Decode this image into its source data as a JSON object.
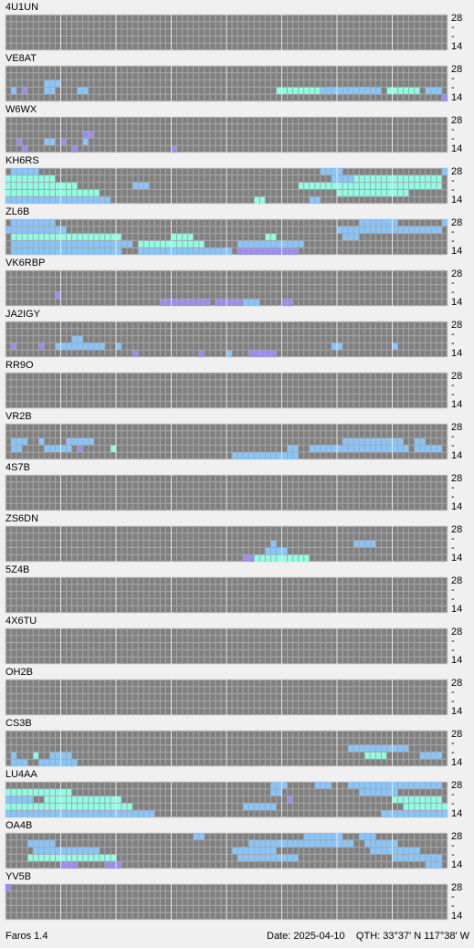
{
  "levels": {
    "palette": [
      "#9a8cf0",
      "#86c6ff",
      "#8cffe6"
    ]
  },
  "axis_labels": [
    "28",
    "-",
    "-",
    "14"
  ],
  "stations": [
    {
      "name": "4U1UN",
      "runs": []
    },
    {
      "name": "VE8AT",
      "runs": [
        [
          2,
          7,
          9,
          2
        ],
        [
          3,
          1,
          1,
          2
        ],
        [
          3,
          3,
          3,
          1
        ],
        [
          3,
          7,
          8,
          2
        ],
        [
          3,
          13,
          14,
          2
        ],
        [
          3,
          49,
          56,
          3
        ],
        [
          3,
          57,
          67,
          2
        ],
        [
          3,
          69,
          74,
          3
        ],
        [
          3,
          76,
          78,
          2
        ],
        [
          4,
          79,
          79,
          1
        ]
      ]
    },
    {
      "name": "W6WX",
      "runs": [
        [
          2,
          14,
          15,
          1
        ],
        [
          3,
          2,
          2,
          1
        ],
        [
          3,
          7,
          8,
          2
        ],
        [
          3,
          10,
          10,
          1
        ],
        [
          3,
          14,
          14,
          2
        ],
        [
          4,
          3,
          3,
          1
        ],
        [
          4,
          12,
          12,
          1
        ],
        [
          4,
          30,
          30,
          1
        ]
      ]
    },
    {
      "name": "KH6RS",
      "runs": [
        [
          0,
          1,
          5,
          2
        ],
        [
          0,
          57,
          60,
          2
        ],
        [
          0,
          79,
          79,
          2
        ],
        [
          1,
          0,
          8,
          3
        ],
        [
          1,
          59,
          62,
          2
        ],
        [
          1,
          63,
          78,
          3
        ],
        [
          2,
          0,
          12,
          3
        ],
        [
          2,
          23,
          25,
          2
        ],
        [
          2,
          53,
          78,
          3
        ],
        [
          3,
          0,
          16,
          3
        ],
        [
          3,
          60,
          72,
          3
        ],
        [
          4,
          0,
          18,
          2
        ],
        [
          4,
          45,
          46,
          3
        ],
        [
          4,
          55,
          56,
          2
        ]
      ]
    },
    {
      "name": "ZL6B",
      "runs": [
        [
          0,
          1,
          8,
          2
        ],
        [
          0,
          64,
          70,
          2
        ],
        [
          0,
          79,
          79,
          2
        ],
        [
          1,
          0,
          10,
          2
        ],
        [
          1,
          60,
          78,
          2
        ],
        [
          2,
          1,
          20,
          3
        ],
        [
          2,
          30,
          33,
          3
        ],
        [
          2,
          47,
          48,
          3
        ],
        [
          2,
          61,
          63,
          2
        ],
        [
          3,
          1,
          22,
          2
        ],
        [
          3,
          24,
          35,
          3
        ],
        [
          3,
          42,
          53,
          2
        ],
        [
          4,
          1,
          20,
          2
        ],
        [
          4,
          24,
          40,
          2
        ],
        [
          4,
          42,
          52,
          1
        ]
      ]
    },
    {
      "name": "VK6RBP",
      "runs": [
        [
          3,
          9,
          9,
          1
        ],
        [
          4,
          28,
          36,
          1
        ],
        [
          4,
          38,
          42,
          1
        ],
        [
          4,
          43,
          45,
          2
        ],
        [
          4,
          50,
          51,
          1
        ]
      ]
    },
    {
      "name": "JA2IGY",
      "runs": [
        [
          2,
          12,
          13,
          2
        ],
        [
          3,
          1,
          1,
          1
        ],
        [
          3,
          6,
          6,
          1
        ],
        [
          3,
          9,
          17,
          2
        ],
        [
          3,
          20,
          20,
          2
        ],
        [
          3,
          59,
          60,
          2
        ],
        [
          3,
          70,
          70,
          2
        ],
        [
          4,
          23,
          23,
          1
        ],
        [
          4,
          35,
          35,
          1
        ],
        [
          4,
          40,
          40,
          2
        ],
        [
          4,
          44,
          48,
          1
        ]
      ]
    },
    {
      "name": "RR9O",
      "runs": []
    },
    {
      "name": "VR2B",
      "runs": [
        [
          2,
          1,
          3,
          2
        ],
        [
          2,
          6,
          6,
          2
        ],
        [
          2,
          11,
          15,
          2
        ],
        [
          2,
          61,
          71,
          2
        ],
        [
          2,
          74,
          75,
          2
        ],
        [
          3,
          1,
          2,
          2
        ],
        [
          3,
          7,
          11,
          2
        ],
        [
          3,
          13,
          13,
          1
        ],
        [
          3,
          19,
          19,
          3
        ],
        [
          3,
          51,
          52,
          2
        ],
        [
          3,
          55,
          72,
          2
        ],
        [
          3,
          74,
          78,
          2
        ],
        [
          4,
          41,
          52,
          2
        ]
      ]
    },
    {
      "name": "4S7B",
      "runs": []
    },
    {
      "name": "ZS6DN",
      "runs": [
        [
          2,
          48,
          48,
          2
        ],
        [
          2,
          63,
          66,
          2
        ],
        [
          3,
          47,
          50,
          2
        ],
        [
          4,
          43,
          44,
          1
        ],
        [
          4,
          45,
          54,
          3
        ]
      ]
    },
    {
      "name": "5Z4B",
      "runs": []
    },
    {
      "name": "4X6TU",
      "runs": []
    },
    {
      "name": "OH2B",
      "runs": []
    },
    {
      "name": "CS3B",
      "runs": [
        [
          2,
          62,
          72,
          2
        ],
        [
          3,
          1,
          1,
          2
        ],
        [
          3,
          5,
          5,
          3
        ],
        [
          3,
          8,
          11,
          2
        ],
        [
          3,
          65,
          68,
          3
        ],
        [
          3,
          75,
          78,
          2
        ],
        [
          4,
          1,
          3,
          2
        ],
        [
          4,
          6,
          12,
          2
        ]
      ]
    },
    {
      "name": "LU4AA",
      "runs": [
        [
          0,
          48,
          50,
          2
        ],
        [
          0,
          56,
          58,
          2
        ],
        [
          0,
          62,
          78,
          2
        ],
        [
          1,
          0,
          11,
          3
        ],
        [
          1,
          48,
          49,
          2
        ],
        [
          1,
          64,
          70,
          2
        ],
        [
          2,
          0,
          4,
          2
        ],
        [
          2,
          7,
          20,
          3
        ],
        [
          2,
          51,
          51,
          1
        ],
        [
          2,
          70,
          78,
          3
        ],
        [
          3,
          0,
          22,
          3
        ],
        [
          3,
          43,
          48,
          2
        ],
        [
          3,
          72,
          79,
          3
        ],
        [
          4,
          0,
          26,
          2
        ],
        [
          4,
          68,
          79,
          2
        ]
      ]
    },
    {
      "name": "OA4B",
      "runs": [
        [
          0,
          34,
          35,
          2
        ],
        [
          0,
          54,
          60,
          2
        ],
        [
          0,
          64,
          66,
          2
        ],
        [
          1,
          4,
          8,
          2
        ],
        [
          1,
          44,
          62,
          2
        ],
        [
          1,
          65,
          70,
          2
        ],
        [
          2,
          5,
          16,
          2
        ],
        [
          2,
          41,
          48,
          2
        ],
        [
          2,
          66,
          74,
          2
        ],
        [
          3,
          4,
          19,
          3
        ],
        [
          3,
          42,
          52,
          2
        ],
        [
          3,
          70,
          78,
          2
        ],
        [
          4,
          10,
          12,
          1
        ],
        [
          4,
          18,
          20,
          1
        ],
        [
          4,
          76,
          78,
          2
        ]
      ]
    },
    {
      "name": "YV5B",
      "runs": [
        [
          0,
          0,
          0,
          1
        ]
      ]
    }
  ],
  "footer": {
    "version": "Faros 1.4",
    "date": "Date: 2025-04-10",
    "qth": "QTH: 33°37' N  117°38' W"
  }
}
